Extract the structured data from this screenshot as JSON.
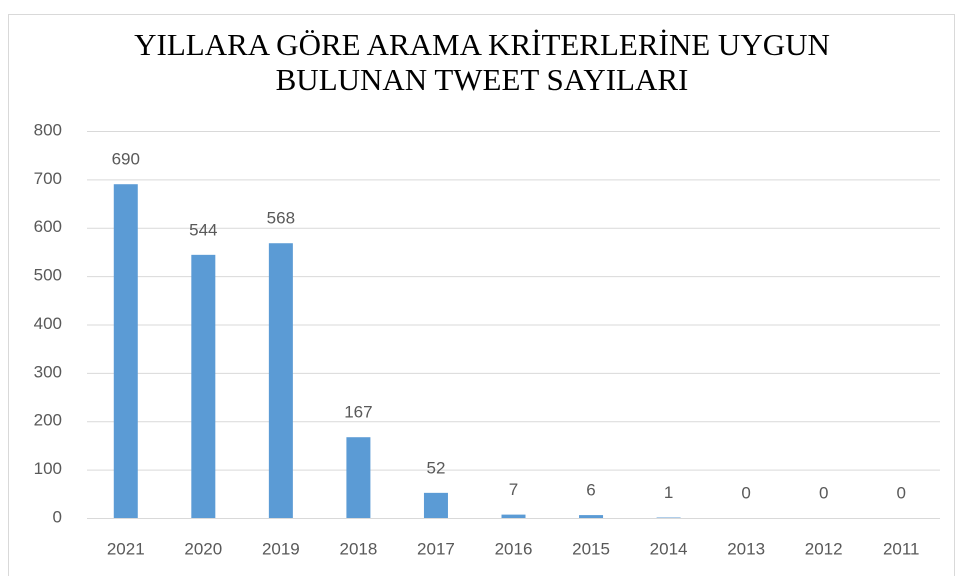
{
  "chart_data": {
    "type": "bar",
    "title": [
      "YILLARA GÖRE ARAMA KRİTERLERİNE UYGUN",
      "BULUNAN TWEET SAYILARI"
    ],
    "categories": [
      "2021",
      "2020",
      "2019",
      "2018",
      "2017",
      "2016",
      "2015",
      "2014",
      "2013",
      "2012",
      "2011"
    ],
    "values": [
      690,
      544,
      568,
      167,
      52,
      7,
      6,
      1,
      0,
      0,
      0
    ],
    "color": "#5b9bd5",
    "ylim": [
      0,
      800
    ],
    "yticks": [
      0,
      100,
      200,
      300,
      400,
      500,
      600,
      700,
      800
    ],
    "grid": true
  }
}
